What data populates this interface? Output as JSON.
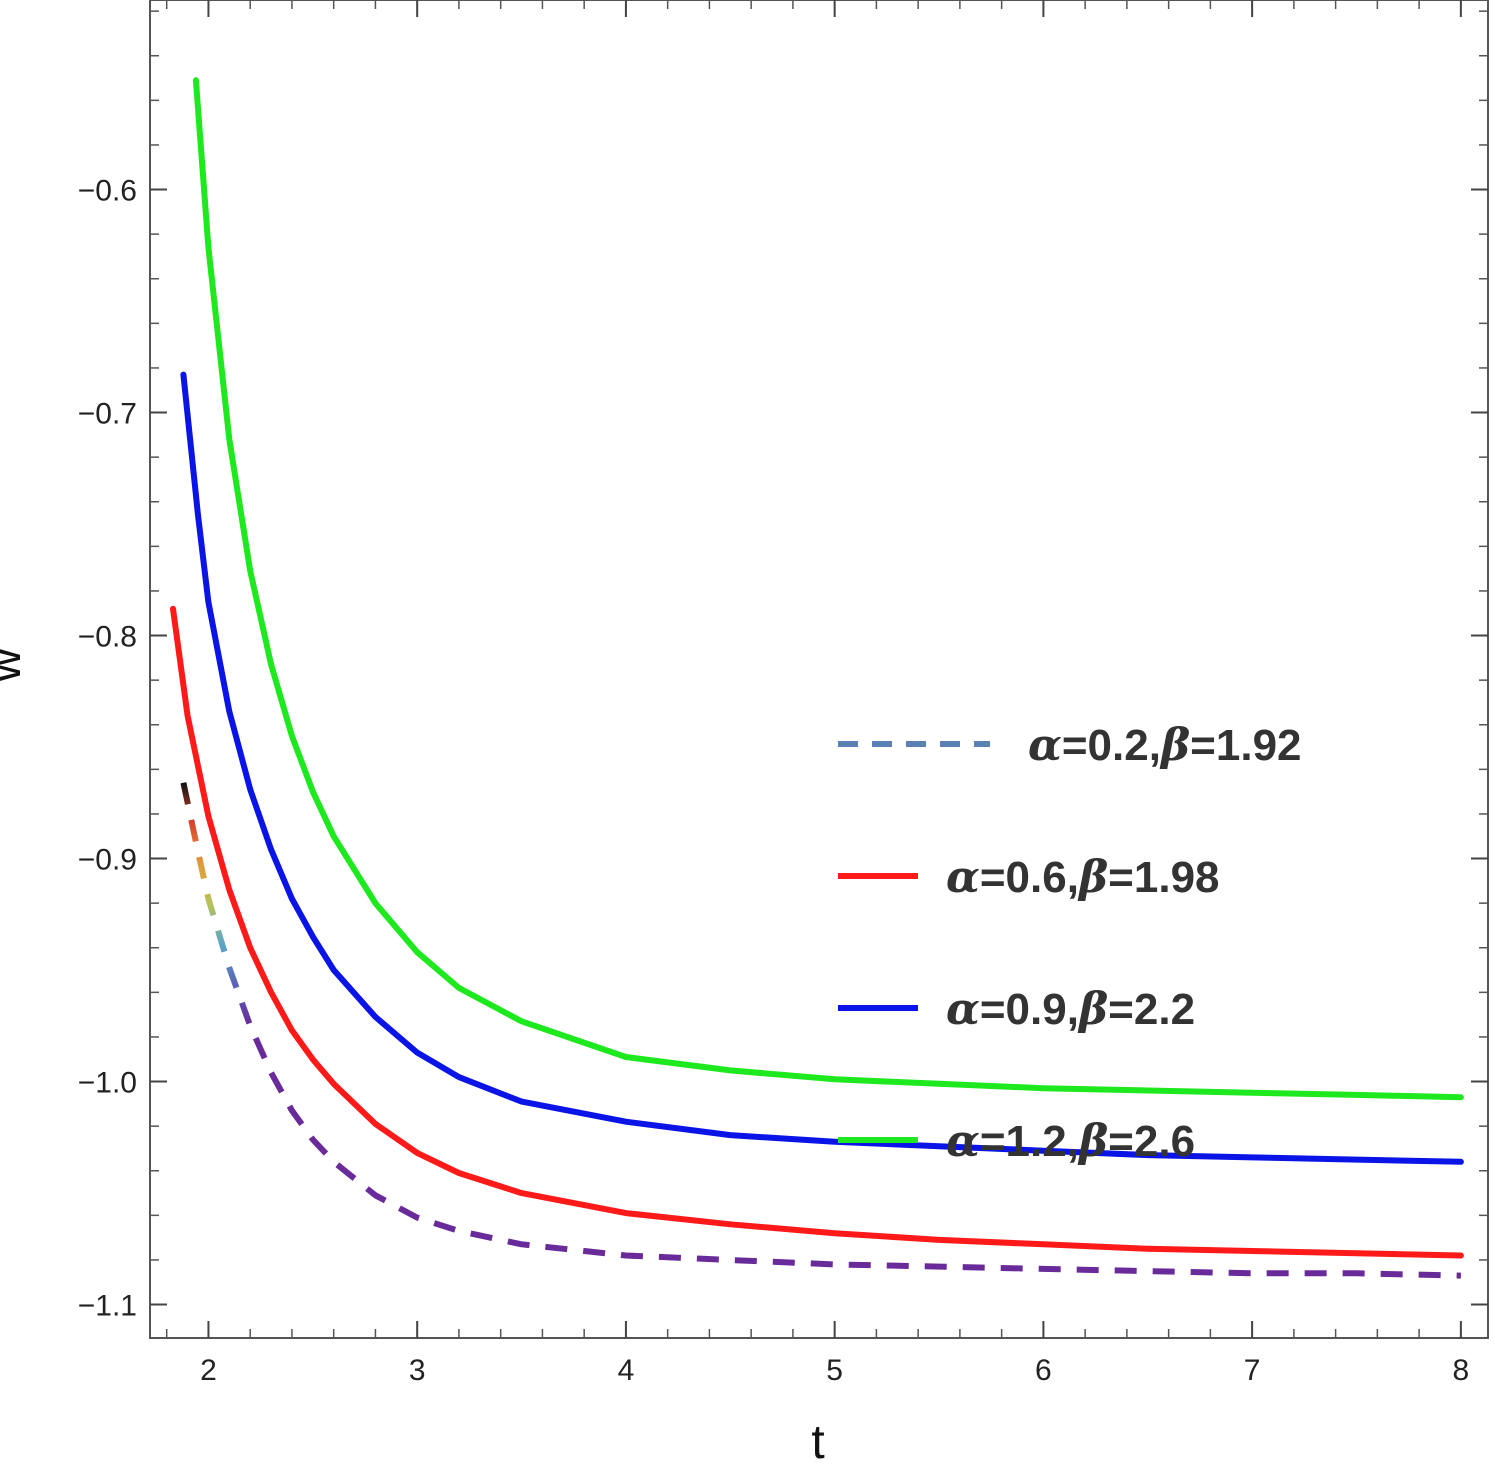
{
  "chart_data": {
    "type": "line",
    "xlabel": "t",
    "ylabel": "w",
    "xlim": [
      1.72,
      8.13
    ],
    "ylim": [
      -1.115,
      -0.515
    ],
    "x_ticks": [
      2,
      3,
      4,
      5,
      6,
      7,
      8
    ],
    "x_tick_labels": [
      "2",
      "3",
      "4",
      "5",
      "6",
      "7",
      "8"
    ],
    "y_ticks": [
      -0.6,
      -0.7,
      -0.8,
      -0.9,
      -1.0,
      -1.1
    ],
    "y_tick_labels": [
      "−0.6",
      "−0.7",
      "−0.8",
      "−0.9",
      "−1.0",
      "−1.1"
    ],
    "x_minor_step": 0.2,
    "y_minor_step": 0.02,
    "grid": false,
    "legend_position": "right",
    "series": [
      {
        "name": "α=0.2,β=1.92",
        "legend_alpha": "α",
        "legend_alpha_value": "=0.2,",
        "legend_beta": "β",
        "legend_beta_value": "=1.92",
        "style": "dashed",
        "color": "#5a7fb5",
        "gradient": [
          "#111111",
          "#d9442e",
          "#e39a3c",
          "#b7c25a",
          "#5aa6c8",
          "#5a63b5",
          "#6a2b9a"
        ],
        "x": [
          1.88,
          1.95,
          2.0,
          2.1,
          2.2,
          2.3,
          2.4,
          2.5,
          2.6,
          2.8,
          3.0,
          3.2,
          3.5,
          4.0,
          4.5,
          5.0,
          5.5,
          6.0,
          6.5,
          7.0,
          7.5,
          8.0
        ],
        "y": [
          -0.866,
          -0.897,
          -0.918,
          -0.949,
          -0.975,
          -0.996,
          -1.013,
          -1.026,
          -1.036,
          -1.051,
          -1.061,
          -1.067,
          -1.073,
          -1.078,
          -1.08,
          -1.082,
          -1.083,
          -1.084,
          -1.085,
          -1.086,
          -1.086,
          -1.087
        ]
      },
      {
        "name": "α=0.6,β=1.98",
        "legend_alpha": "α",
        "legend_alpha_value": "=0.6,",
        "legend_beta": "β",
        "legend_beta_value": "=1.98",
        "style": "solid",
        "color": "#ff1a1a",
        "x": [
          1.83,
          1.9,
          2.0,
          2.1,
          2.2,
          2.3,
          2.4,
          2.5,
          2.6,
          2.8,
          3.0,
          3.2,
          3.5,
          4.0,
          4.5,
          5.0,
          5.5,
          6.0,
          6.5,
          7.0,
          7.5,
          8.0
        ],
        "y": [
          -0.788,
          -0.836,
          -0.881,
          -0.914,
          -0.94,
          -0.96,
          -0.977,
          -0.99,
          -1.001,
          -1.019,
          -1.032,
          -1.041,
          -1.05,
          -1.059,
          -1.064,
          -1.068,
          -1.071,
          -1.073,
          -1.075,
          -1.076,
          -1.077,
          -1.078
        ]
      },
      {
        "name": "α=0.9,β=2.2",
        "legend_alpha": "α",
        "legend_alpha_value": "=0.9,",
        "legend_beta": "β",
        "legend_beta_value": "=2.2",
        "style": "solid",
        "color": "#0a14e6",
        "x": [
          1.88,
          1.95,
          2.0,
          2.1,
          2.2,
          2.3,
          2.4,
          2.5,
          2.6,
          2.8,
          3.0,
          3.2,
          3.5,
          4.0,
          4.5,
          5.0,
          5.5,
          6.0,
          6.5,
          7.0,
          7.5,
          8.0
        ],
        "y": [
          -0.683,
          -0.746,
          -0.785,
          -0.834,
          -0.869,
          -0.896,
          -0.918,
          -0.935,
          -0.95,
          -0.971,
          -0.987,
          -0.998,
          -1.009,
          -1.018,
          -1.024,
          -1.027,
          -1.029,
          -1.031,
          -1.033,
          -1.034,
          -1.035,
          -1.036
        ]
      },
      {
        "name": "α=1.2,β=2.6",
        "legend_alpha": "α",
        "legend_alpha_value": "=1.2,",
        "legend_beta": "β",
        "legend_beta_value": "=2.6",
        "style": "solid",
        "color": "#1ee81e",
        "x": [
          1.94,
          2.0,
          2.05,
          2.1,
          2.2,
          2.3,
          2.4,
          2.5,
          2.6,
          2.8,
          3.0,
          3.2,
          3.5,
          4.0,
          4.5,
          5.0,
          5.5,
          6.0,
          6.5,
          7.0,
          7.5,
          8.0
        ],
        "y": [
          -0.551,
          -0.626,
          -0.669,
          -0.712,
          -0.771,
          -0.813,
          -0.845,
          -0.87,
          -0.89,
          -0.92,
          -0.942,
          -0.958,
          -0.973,
          -0.989,
          -0.995,
          -0.999,
          -1.001,
          -1.003,
          -1.004,
          -1.005,
          -1.006,
          -1.007
        ]
      }
    ]
  }
}
